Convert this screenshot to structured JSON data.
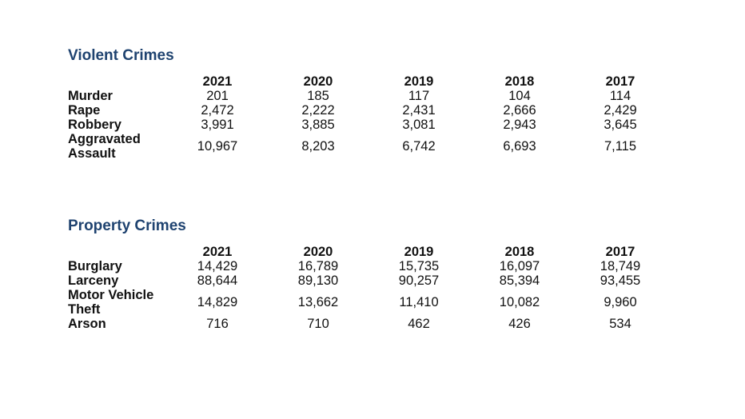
{
  "violent": {
    "title": "Violent Crimes",
    "years": [
      "2021",
      "2020",
      "2019",
      "2018",
      "2017"
    ],
    "rows": [
      {
        "label": "Murder",
        "values": [
          "201",
          "185",
          "117",
          "104",
          "114"
        ]
      },
      {
        "label": "Rape",
        "values": [
          "2,472",
          "2,222",
          "2,431",
          "2,666",
          "2,429"
        ]
      },
      {
        "label": "Robbery",
        "values": [
          "3,991",
          "3,885",
          "3,081",
          "2,943",
          "3,645"
        ]
      },
      {
        "label": "Aggravated Assault",
        "values": [
          "10,967",
          "8,203",
          "6,742",
          "6,693",
          "7,115"
        ]
      }
    ]
  },
  "property": {
    "title": "Property Crimes",
    "years": [
      "2021",
      "2020",
      "2019",
      "2018",
      "2017"
    ],
    "rows": [
      {
        "label": "Burglary",
        "values": [
          "14,429",
          "16,789",
          "15,735",
          "16,097",
          "18,749"
        ]
      },
      {
        "label": "Larceny",
        "values": [
          "88,644",
          "89,130",
          "90,257",
          "85,394",
          "93,455"
        ]
      },
      {
        "label": "Motor Vehicle Theft",
        "values": [
          "14,829",
          "13,662",
          "11,410",
          "10,082",
          "9,960"
        ]
      },
      {
        "label": "Arson",
        "values": [
          "716",
          "710",
          "462",
          "426",
          "534"
        ]
      }
    ]
  }
}
